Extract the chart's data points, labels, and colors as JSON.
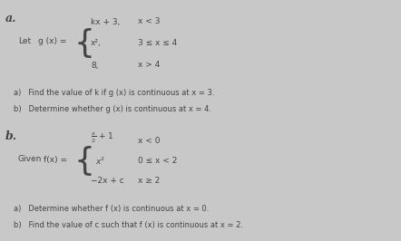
{
  "bg_color": "#c8c8c8",
  "panel_a_bg": "#d8d8d8",
  "panel_b_bg": "#d0d0d0",
  "label_color": "#444444",
  "text_color": "#444444",
  "label_a": "a.",
  "label_b": "b.",
  "part_a_let": "Let",
  "part_a_gx": "g (x) =",
  "part_a_p1e": "kx + 3,",
  "part_a_p1c": "x < 3",
  "part_a_p2e": "x²,",
  "part_a_p2c": "3 ≤ x ≤ 4",
  "part_a_p3e": "8,",
  "part_a_p3c": "x > 4",
  "part_a_qa": "a)   Find the value of k if g (x) is continuous at x = 3.",
  "part_a_qb": "b)   Determine whether g (x) is continuous at x = 4.",
  "part_b_given": "Given",
  "part_b_fx": "f(x) =",
  "part_b_p1e": "x/2 + 1",
  "part_b_p1c": "x < 0",
  "part_b_p2e": "x²",
  "part_b_p2c": "0 ≤ x < 2",
  "part_b_p3e": "−2x + c",
  "part_b_p3c": "x ≥ 2",
  "part_b_qa": "a)   Determine whether f (x) is continuous at x = 0.",
  "part_b_qb": "b)   Find the value of c such that f (x) is continuous at x = 2.",
  "fig_w": 4.42,
  "fig_h": 2.66,
  "dpi": 100
}
